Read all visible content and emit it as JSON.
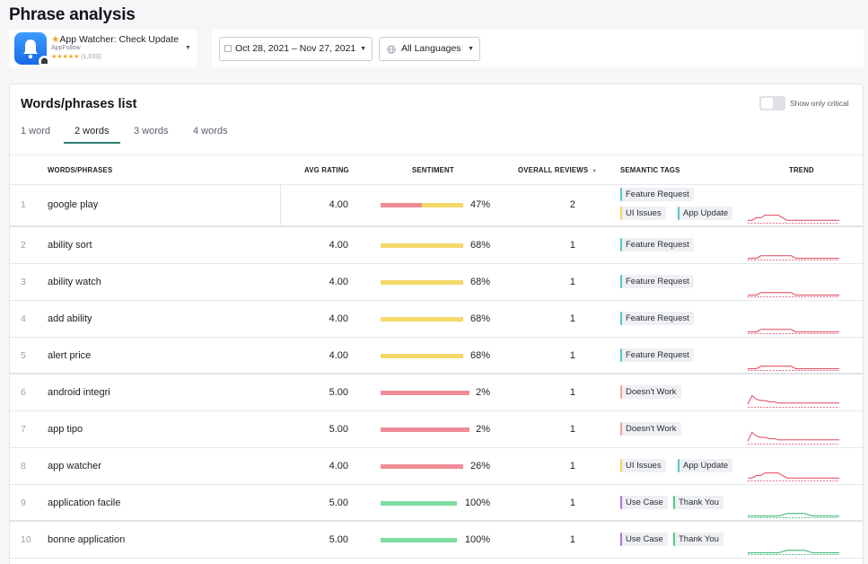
{
  "page": {
    "title": "Phrase analysis"
  },
  "app": {
    "name": "App Watcher: Check Update",
    "developer": "AppFollow",
    "stars": "★★★★★",
    "rating_count": "(1,033)"
  },
  "filters": {
    "date_range": "Oct 28, 2021 – Nov 27, 2021",
    "language": "All Languages"
  },
  "card": {
    "title": "Words/phrases list",
    "toggle_label": "Show only critical",
    "toggle_on": false
  },
  "tabs": [
    {
      "label": "1 word",
      "active": false
    },
    {
      "label": "2 words",
      "active": true
    },
    {
      "label": "3 words",
      "active": false
    },
    {
      "label": "4 words",
      "active": false
    }
  ],
  "columns": {
    "phrase": "WORDS/PHRASES",
    "rating": "AVG RATING",
    "sentiment": "SENTIMENT",
    "reviews": "OVERALL REVIEWS",
    "tags": "SEMANTIC TAGS",
    "trend": "TREND"
  },
  "colors": {
    "negative": "#f08c98",
    "neutral": "#f5d86a",
    "positive": "#7ddc9f",
    "trend_red": "#e0435a",
    "trend_green": "#2fb36b",
    "tag_feature_request": "#5bc4c9",
    "tag_ui_issues": "#f2d35e",
    "tag_app_update": "#5bc4c9",
    "tag_doesnt_work": "#f3a39a",
    "tag_use_case": "#b86ee6",
    "tag_thank_you": "#4ccf7e"
  },
  "rows": [
    {
      "num": "1",
      "phrase": "google play",
      "rating": "4.00",
      "pct": "47%",
      "reviews": "2",
      "sentiment": [
        {
          "tone": "negative",
          "share": 0.5
        },
        {
          "tone": "neutral",
          "share": 0.5
        }
      ],
      "tags": [
        [
          "Feature Request"
        ],
        [
          "UI Issues",
          "App Update"
        ]
      ],
      "trend_color": "trend_red",
      "trend": [
        0.2,
        0.2,
        0.4,
        0.4,
        0.6,
        0.6,
        0.6,
        0.6,
        0.4,
        0.2,
        0.2,
        0.2,
        0.2,
        0.2,
        0.2,
        0.2,
        0.2,
        0.2,
        0.2,
        0.2,
        0.2,
        0.2
      ]
    },
    {
      "num": "2",
      "phrase": "ability sort",
      "rating": "4.00",
      "pct": "68%",
      "reviews": "1",
      "sentiment": [
        {
          "tone": "neutral",
          "share": 1
        }
      ],
      "tags": [
        [
          "Feature Request"
        ]
      ],
      "trend_color": "trend_red",
      "trend": [
        0.1,
        0.1,
        0.1,
        0.3,
        0.3,
        0.3,
        0.3,
        0.3,
        0.3,
        0.3,
        0.3,
        0.1,
        0.1,
        0.1,
        0.1,
        0.1,
        0.1,
        0.1,
        0.1,
        0.1,
        0.1,
        0.1
      ]
    },
    {
      "num": "3",
      "phrase": "ability watch",
      "rating": "4.00",
      "pct": "68%",
      "reviews": "1",
      "sentiment": [
        {
          "tone": "neutral",
          "share": 1
        }
      ],
      "tags": [
        [
          "Feature Request"
        ]
      ],
      "trend_color": "trend_red",
      "trend": [
        0.1,
        0.1,
        0.1,
        0.3,
        0.3,
        0.3,
        0.3,
        0.3,
        0.3,
        0.3,
        0.3,
        0.1,
        0.1,
        0.1,
        0.1,
        0.1,
        0.1,
        0.1,
        0.1,
        0.1,
        0.1,
        0.1
      ]
    },
    {
      "num": "4",
      "phrase": "add ability",
      "rating": "4.00",
      "pct": "68%",
      "reviews": "1",
      "sentiment": [
        {
          "tone": "neutral",
          "share": 1
        }
      ],
      "tags": [
        [
          "Feature Request"
        ]
      ],
      "trend_color": "trend_red",
      "trend": [
        0.1,
        0.1,
        0.1,
        0.3,
        0.3,
        0.3,
        0.3,
        0.3,
        0.3,
        0.3,
        0.3,
        0.1,
        0.1,
        0.1,
        0.1,
        0.1,
        0.1,
        0.1,
        0.1,
        0.1,
        0.1,
        0.1
      ]
    },
    {
      "num": "5",
      "phrase": "alert price",
      "rating": "4.00",
      "pct": "68%",
      "reviews": "1",
      "sentiment": [
        {
          "tone": "neutral",
          "share": 1
        }
      ],
      "tags": [
        [
          "Feature Request"
        ]
      ],
      "trend_color": "trend_red",
      "trend": [
        0.1,
        0.1,
        0.1,
        0.3,
        0.3,
        0.3,
        0.3,
        0.3,
        0.3,
        0.3,
        0.3,
        0.1,
        0.1,
        0.1,
        0.1,
        0.1,
        0.1,
        0.1,
        0.1,
        0.1,
        0.1,
        0.1
      ]
    },
    {
      "num": "6",
      "phrase": "android integri",
      "rating": "5.00",
      "pct": "2%",
      "reviews": "1",
      "sentiment": [
        {
          "tone": "negative",
          "share": 1
        }
      ],
      "tags": [
        [
          "Doesn't Work"
        ]
      ],
      "trend_color": "trend_red",
      "trend": [
        0.2,
        0.9,
        0.6,
        0.5,
        0.5,
        0.4,
        0.4,
        0.3,
        0.3,
        0.3,
        0.3,
        0.3,
        0.3,
        0.3,
        0.3,
        0.3,
        0.3,
        0.3,
        0.3,
        0.3,
        0.3,
        0.3
      ]
    },
    {
      "num": "7",
      "phrase": "app tipo",
      "rating": "5.00",
      "pct": "2%",
      "reviews": "1",
      "sentiment": [
        {
          "tone": "negative",
          "share": 1
        }
      ],
      "tags": [
        [
          "Doesn't Work"
        ]
      ],
      "trend_color": "trend_red",
      "trend": [
        0.2,
        0.9,
        0.6,
        0.5,
        0.5,
        0.4,
        0.4,
        0.3,
        0.3,
        0.3,
        0.3,
        0.3,
        0.3,
        0.3,
        0.3,
        0.3,
        0.3,
        0.3,
        0.3,
        0.3,
        0.3,
        0.3
      ]
    },
    {
      "num": "8",
      "phrase": "app watcher",
      "rating": "4.00",
      "pct": "26%",
      "reviews": "1",
      "sentiment": [
        {
          "tone": "negative",
          "share": 1
        }
      ],
      "tags": [
        [
          "UI Issues",
          "App Update"
        ]
      ],
      "trend_color": "trend_red",
      "trend": [
        0.2,
        0.2,
        0.4,
        0.4,
        0.6,
        0.6,
        0.6,
        0.6,
        0.4,
        0.2,
        0.2,
        0.2,
        0.2,
        0.2,
        0.2,
        0.2,
        0.2,
        0.2,
        0.2,
        0.2,
        0.2,
        0.2
      ]
    },
    {
      "num": "9",
      "phrase": "application facile",
      "rating": "5.00",
      "pct": "100%",
      "reviews": "1",
      "sentiment": [
        {
          "tone": "positive",
          "share": 1
        }
      ],
      "tags": [
        [
          "Use Case",
          "Thank You"
        ]
      ],
      "trend_color": "trend_green",
      "trend": [
        0.1,
        0.1,
        0.1,
        0.1,
        0.1,
        0.1,
        0.1,
        0.1,
        0.2,
        0.3,
        0.3,
        0.3,
        0.3,
        0.3,
        0.2,
        0.1,
        0.1,
        0.1,
        0.1,
        0.1,
        0.1,
        0.1
      ]
    },
    {
      "num": "10",
      "phrase": "bonne application",
      "rating": "5.00",
      "pct": "100%",
      "reviews": "1",
      "sentiment": [
        {
          "tone": "positive",
          "share": 1
        }
      ],
      "tags": [
        [
          "Use Case",
          "Thank You"
        ]
      ],
      "trend_color": "trend_green",
      "trend": [
        0.1,
        0.1,
        0.1,
        0.1,
        0.1,
        0.1,
        0.1,
        0.1,
        0.2,
        0.3,
        0.3,
        0.3,
        0.3,
        0.3,
        0.2,
        0.1,
        0.1,
        0.1,
        0.1,
        0.1,
        0.1,
        0.1
      ]
    }
  ]
}
